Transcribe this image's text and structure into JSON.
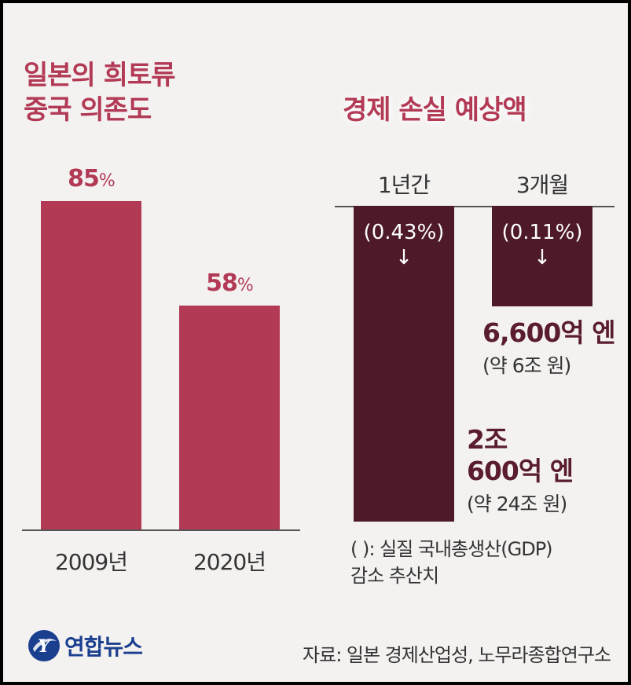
{
  "colors": {
    "left_bar": "#b23a55",
    "right_bar": "#4e1a29",
    "title": "#b23a55",
    "axis": "#555555",
    "logo": "#1b3f8f"
  },
  "left_panel": {
    "title_line1": "일본의 희토류",
    "title_line2": "중국 의존도"
  },
  "right_panel": {
    "title": "경제 손실 예상액",
    "note_line1": "( ): 실질 국내총생산(GDP)",
    "note_line2": "감소 추산치"
  },
  "chart_data": [
    {
      "type": "bar",
      "categories": [
        "2009년",
        "2020년"
      ],
      "values": [
        85,
        58
      ],
      "value_labels": [
        "85",
        "58"
      ],
      "unit": "%",
      "ylim": [
        0,
        100
      ],
      "title": "일본의 희토류 중국 의존도"
    },
    {
      "type": "bar",
      "orientation": "downward",
      "categories": [
        "1년간",
        "3개월"
      ],
      "ratio_labels": [
        "(0.43%)",
        "(0.11%)"
      ],
      "arrow_glyph": "↓",
      "values_gdp_decrease_pct": [
        0.43,
        0.11
      ],
      "amounts": [
        {
          "lines": [
            "2조",
            "600억 엔"
          ],
          "sub": "(약 24조 원)"
        },
        {
          "lines": [
            "6,600억 엔"
          ],
          "sub": "(약 6조 원)"
        }
      ],
      "title": "경제 손실 예상액"
    }
  ],
  "footer": {
    "logo_text": "연합뉴스",
    "logo_glyph": "Y",
    "source": "자료: 일본 경제산업성, 노무라종합연구소"
  }
}
